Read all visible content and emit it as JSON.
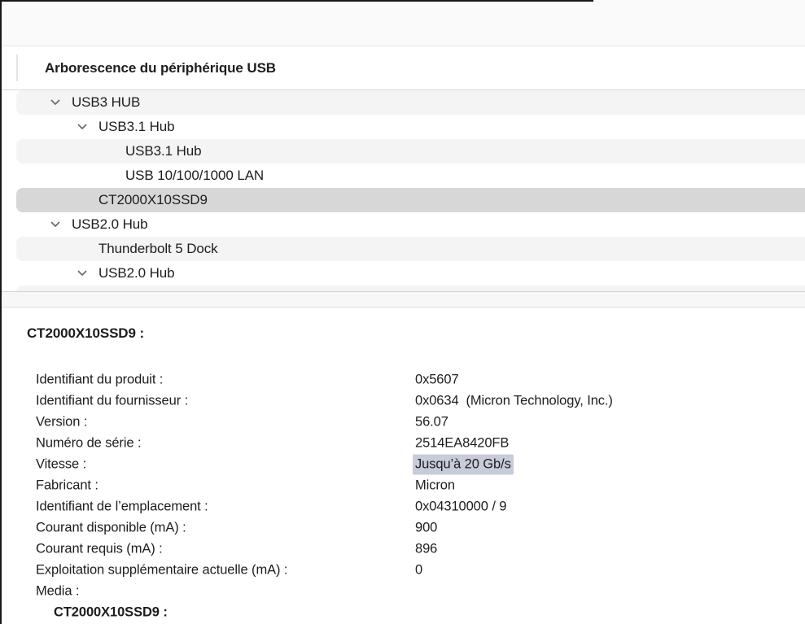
{
  "header": {
    "title": "Arborescence du périphérique USB"
  },
  "tree": {
    "items": [
      {
        "label": "USB3 HUB",
        "level": 1,
        "expanded": true,
        "selected": false
      },
      {
        "label": "USB3.1 Hub",
        "level": 2,
        "expanded": true,
        "selected": false
      },
      {
        "label": "USB3.1 Hub",
        "level": 3,
        "expanded": false,
        "selected": false
      },
      {
        "label": "USB 10/100/1000 LAN",
        "level": 3,
        "expanded": false,
        "selected": false
      },
      {
        "label": "CT2000X10SSD9",
        "level": 2,
        "expanded": false,
        "selected": true
      },
      {
        "label": "USB2.0 Hub",
        "level": 1,
        "expanded": true,
        "selected": false
      },
      {
        "label": "Thunderbolt 5 Dock",
        "level": 2,
        "expanded": false,
        "selected": false
      },
      {
        "label": "USB2.0 Hub",
        "level": 2,
        "expanded": true,
        "selected": false
      }
    ]
  },
  "details": {
    "title": "CT2000X10SSD9 :",
    "rows": [
      {
        "label": "Identifiant du produit :",
        "value": "0x5607",
        "highlighted": false,
        "bold": false
      },
      {
        "label": "Identifiant du fournisseur :",
        "value": "0x0634  (Micron Technology, Inc.)",
        "highlighted": false,
        "bold": false
      },
      {
        "label": "Version :",
        "value": "56.07",
        "highlighted": false,
        "bold": false
      },
      {
        "label": "Numéro de série :",
        "value": "2514EA8420FB",
        "highlighted": false,
        "bold": false
      },
      {
        "label": "Vitesse :",
        "value": "Jusqu’à 20 Gb/s",
        "highlighted": true,
        "bold": false
      },
      {
        "label": "Fabricant :",
        "value": "Micron",
        "highlighted": false,
        "bold": false
      },
      {
        "label": "Identifiant de l’emplacement :",
        "value": "0x04310000 / 9",
        "highlighted": false,
        "bold": false
      },
      {
        "label": "Courant disponible (mA) :",
        "value": "900",
        "highlighted": false,
        "bold": false
      },
      {
        "label": "Courant requis (mA) :",
        "value": "896",
        "highlighted": false,
        "bold": false
      },
      {
        "label": "Exploitation supplémentaire actuelle (mA) :",
        "value": "0",
        "highlighted": false,
        "bold": false
      },
      {
        "label": "Media :",
        "value": "",
        "highlighted": false,
        "bold": false
      },
      {
        "label": "CT2000X10SSD9 :",
        "value": "",
        "highlighted": false,
        "bold": true
      }
    ]
  },
  "icons": {
    "expanded_row": "chevron-down-icon"
  },
  "colors": {
    "highlight": "#c8cbd9",
    "selected_row": "#d7d7d8",
    "stripe_row": "#f4f4f5"
  }
}
